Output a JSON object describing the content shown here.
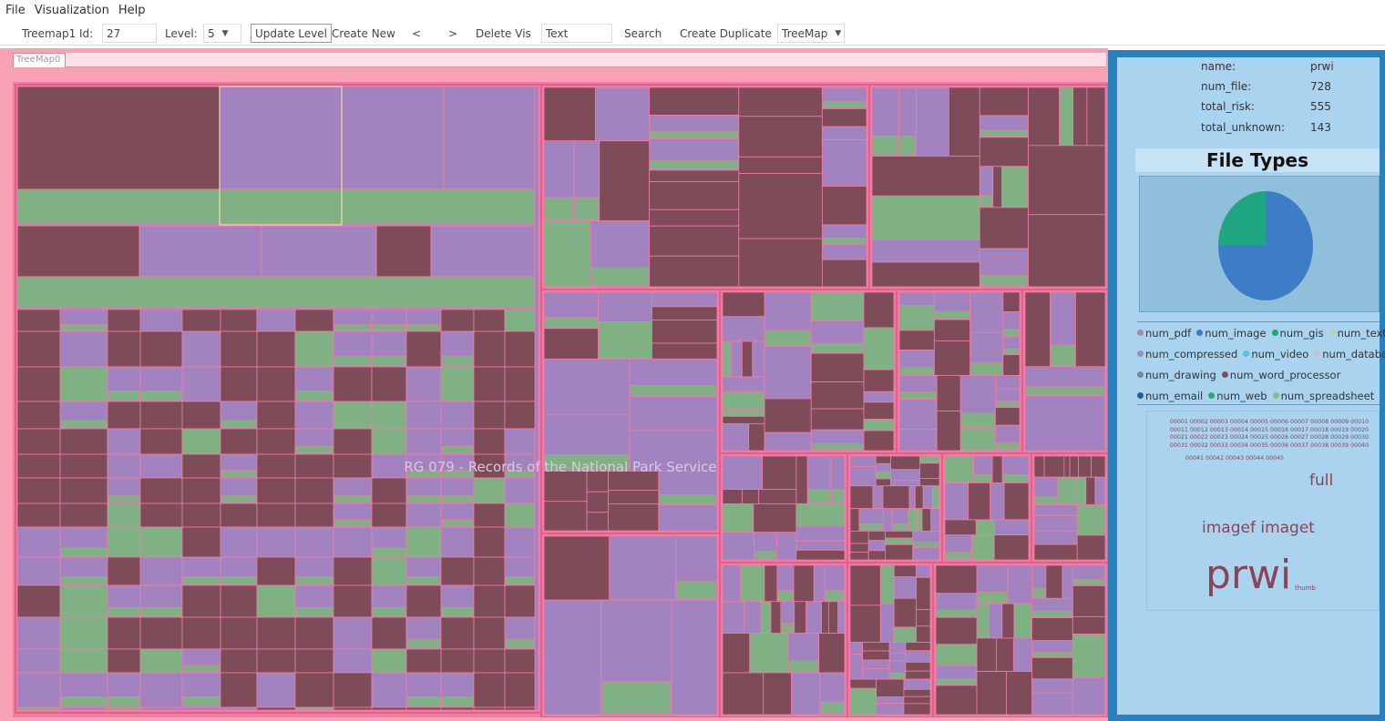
{
  "menu": [
    "File",
    "Visualization",
    "Help"
  ],
  "toolbar": {
    "tab_name": "Treemap1",
    "id_label": "Id:",
    "id_value": "27",
    "level_label": "Level:",
    "level_value": "5",
    "update_level": "Update Level",
    "create_new": "Create New",
    "prev": "<",
    "next": ">",
    "delete_vis": "Delete Vis",
    "search_value": "Text",
    "search": "Search",
    "create_duplicate": "Create Duplicate",
    "vis_type": "TreeMap"
  },
  "tab_label": "TreeMap0",
  "treemap": {
    "overlay_label": "RG 079 - Records of the National Park Service",
    "colors": {
      "frame": "#f07ca3",
      "purple": "#a383bf",
      "maroon": "#7e4b58",
      "green": "#80b185",
      "pink": "#f8a0ae",
      "blue": "#8ec8e6",
      "peach": "#f6c6a0"
    }
  },
  "panel": {
    "info": [
      {
        "key": "name:",
        "value": "prwi"
      },
      {
        "key": "num_file:",
        "value": "728"
      },
      {
        "key": "total_risk:",
        "value": "555"
      },
      {
        "key": "total_unknown:",
        "value": "143"
      }
    ],
    "file_types_title": "File Types",
    "chart_data": {
      "type": "pie",
      "slices": [
        {
          "label": "num_image",
          "value": 75,
          "color": "#3d7dc8"
        },
        {
          "label": "num_gis",
          "value": 25,
          "color": "#1fa57f"
        }
      ]
    },
    "legend": [
      [
        {
          "label": "num_pdf",
          "color": "#a58ab0"
        },
        {
          "label": "num_image",
          "color": "#3d7dc8"
        },
        {
          "label": "num_gis",
          "color": "#1fa57f"
        },
        {
          "label": "num_text",
          "color": "#b8d4a0"
        }
      ],
      [
        {
          "label": "num_compressed",
          "color": "#9c8fb6"
        },
        {
          "label": "num_video",
          "color": "#56c0dd"
        },
        {
          "label": "num_database",
          "color": "#c5bfd2"
        }
      ],
      [
        {
          "label": "num_drawing",
          "color": "#6f8aa0"
        },
        {
          "label": "num_word_processor",
          "color": "#8a4a5c"
        }
      ],
      [
        {
          "label": "num_email",
          "color": "#2a5a9c"
        },
        {
          "label": "num_web",
          "color": "#2ea37a"
        },
        {
          "label": "num_spreadsheet",
          "color": "#7ec37a"
        }
      ]
    ],
    "cloud": {
      "numbers": "00001 00002 00003 00004 00005 00006 00007 00008 00009 00010 00011 00012 00013 00014 00015 00016 00017 00018 00019 00020 00021 00022 00023 00024 00025 00026 00027 00028 00029 00030 00031 00032 00033 00034 00035 00036 00037 00038 00039 00040",
      "numbers2": "00041 00042 00043 00044 00045",
      "full": "full",
      "image": "imagef imaget",
      "prwi": "prwi",
      "thumb": "thumb"
    }
  }
}
